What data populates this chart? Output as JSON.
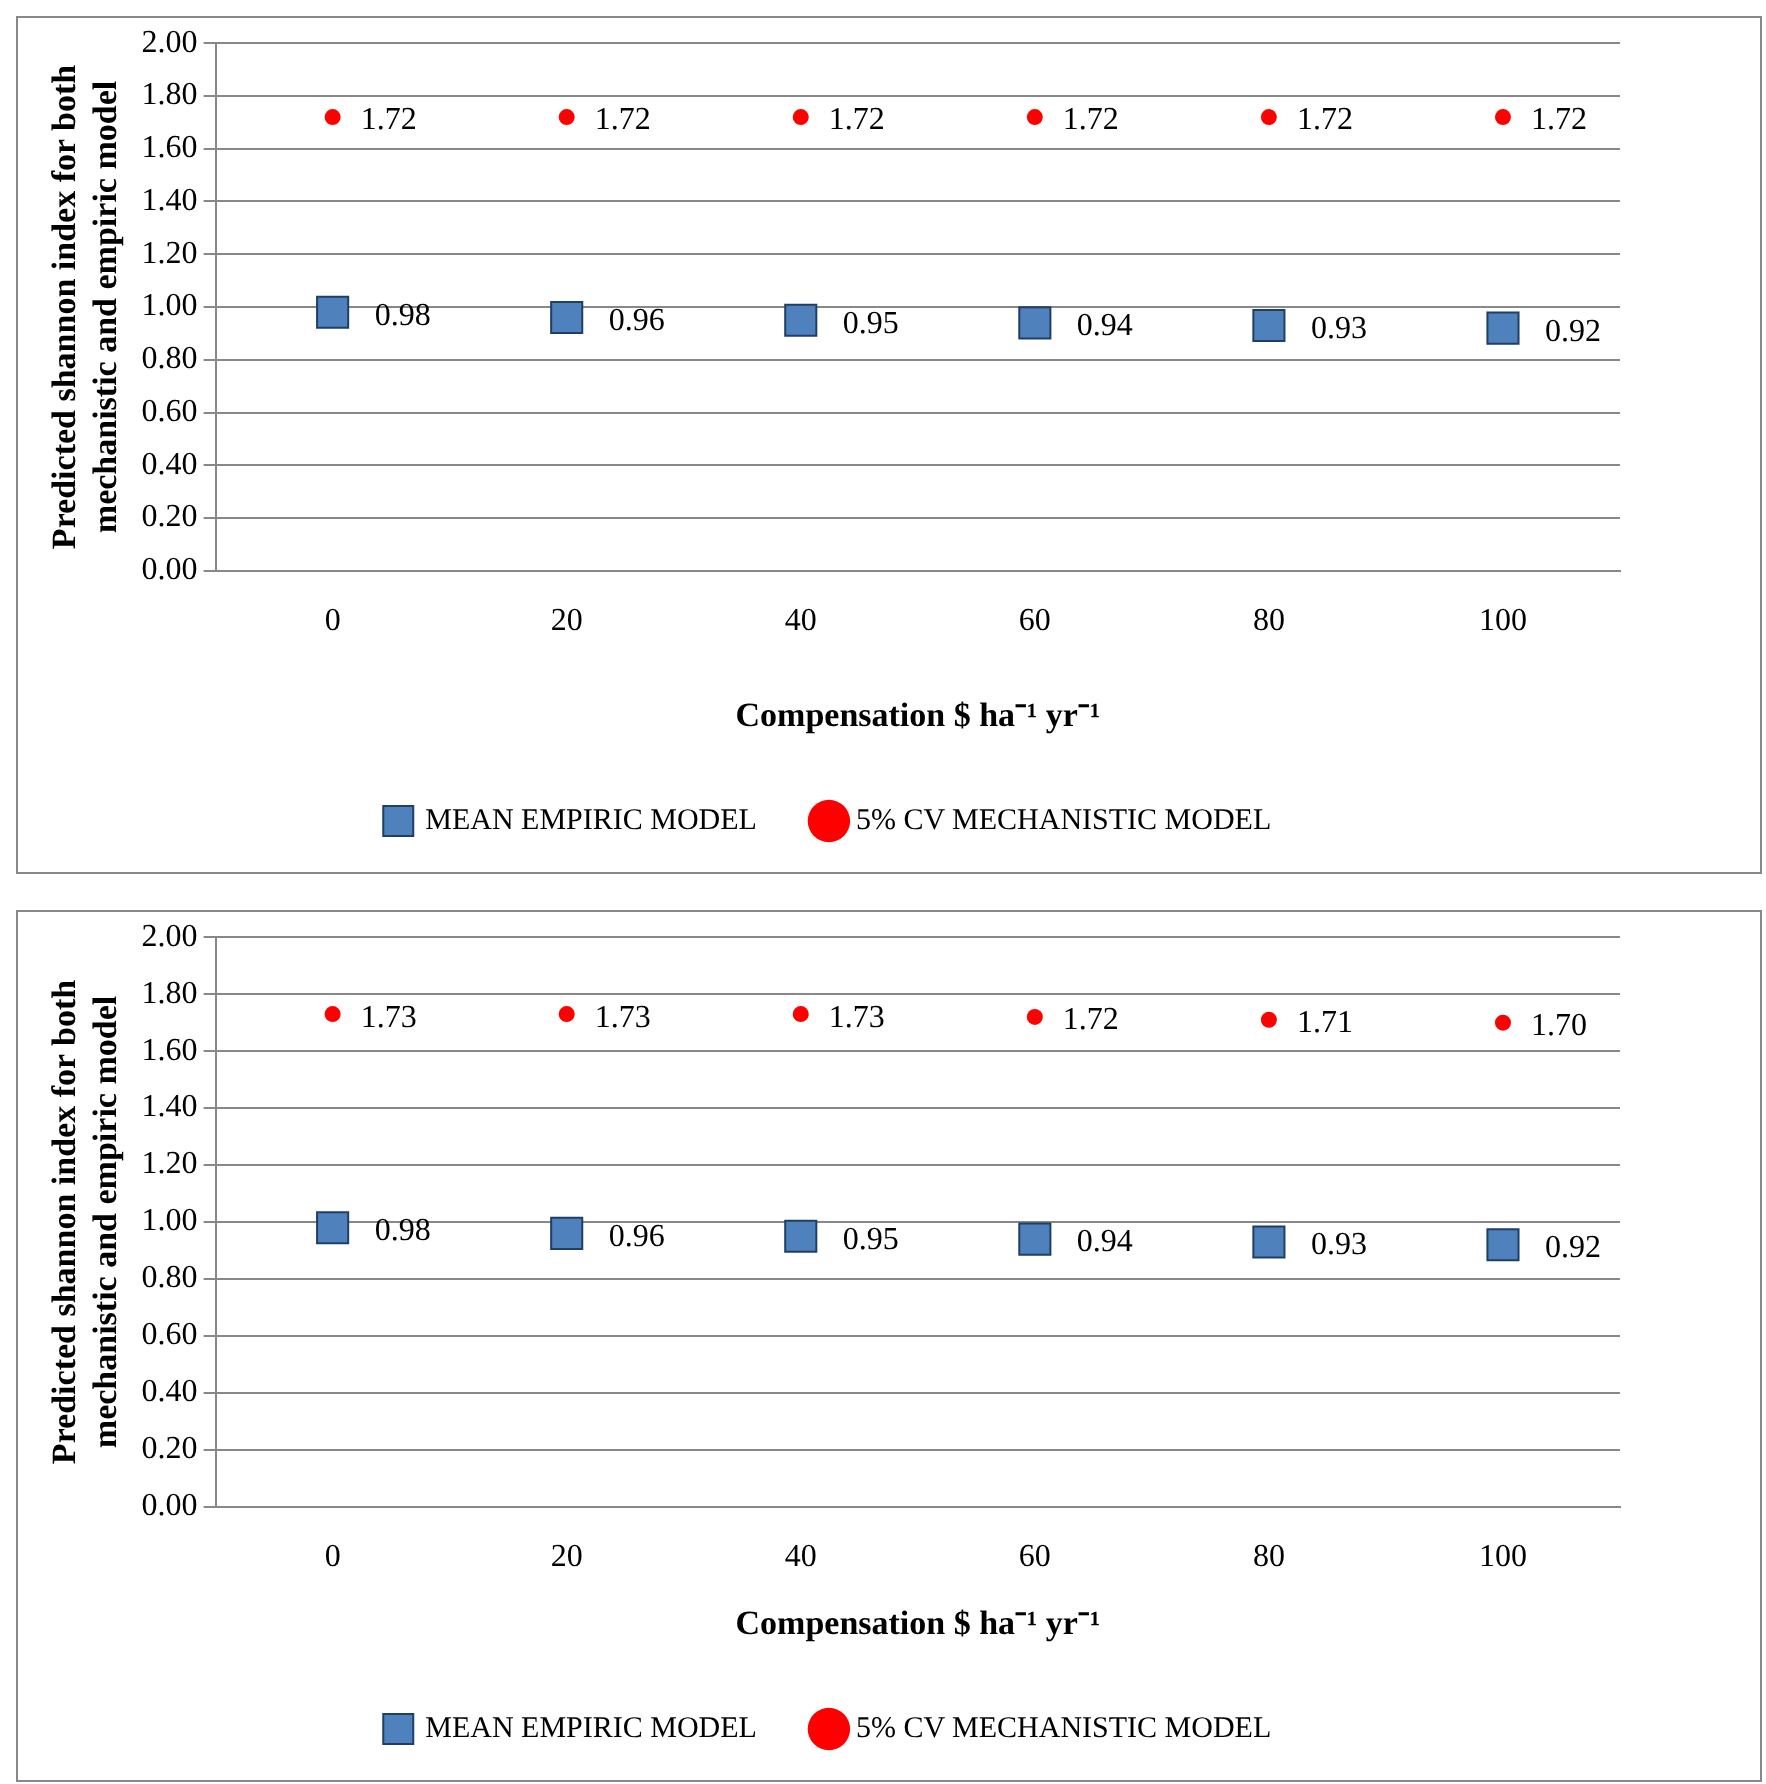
{
  "chart_data": [
    {
      "type": "scatter",
      "xlabel": "Compensation $ ha⁻¹ yr⁻¹",
      "ylabel": "Predicted shannon index for both mechanistic and empiric model",
      "categories": [
        "0",
        "20",
        "40",
        "60",
        "80",
        "100"
      ],
      "series": [
        {
          "name": "MEAN EMPIRIC MODEL",
          "color": "#4f81bd",
          "marker": "square",
          "values": [
            0.98,
            0.96,
            0.95,
            0.94,
            0.93,
            0.92
          ],
          "value_labels": [
            "0.98",
            "0.96",
            "0.95",
            "0.94",
            "0.93",
            "0.92"
          ]
        },
        {
          "name": "5% CV MECHANISTIC MODEL",
          "color": "#ff0000",
          "marker": "circle",
          "values": [
            1.72,
            1.72,
            1.72,
            1.72,
            1.72,
            1.72
          ],
          "value_labels": [
            "1.72",
            "1.72",
            "1.72",
            "1.72",
            "1.72",
            "1.72"
          ]
        }
      ],
      "ylim": [
        0,
        2
      ],
      "yticks": [
        {
          "value": 0,
          "label": "0.00"
        },
        {
          "value": 0.2,
          "label": "0.20"
        },
        {
          "value": 0.4,
          "label": "0.40"
        },
        {
          "value": 0.6,
          "label": "0.60"
        },
        {
          "value": 0.8,
          "label": "0.80"
        },
        {
          "value": 1,
          "label": "1.00"
        },
        {
          "value": 1.2,
          "label": "1.20"
        },
        {
          "value": 1.4,
          "label": "1.40"
        },
        {
          "value": 1.6,
          "label": "1.60"
        },
        {
          "value": 1.8,
          "label": "1.80"
        },
        {
          "value": 2,
          "label": "2.00"
        }
      ],
      "grid": "y",
      "legend": "bottom"
    },
    {
      "type": "scatter",
      "xlabel": "Compensation $ ha⁻¹ yr⁻¹",
      "ylabel": "Predicted shannon index for both mechanistic and empiric model",
      "categories": [
        "0",
        "20",
        "40",
        "60",
        "80",
        "100"
      ],
      "series": [
        {
          "name": "MEAN EMPIRIC MODEL",
          "color": "#4f81bd",
          "marker": "square",
          "values": [
            0.98,
            0.96,
            0.95,
            0.94,
            0.93,
            0.92
          ],
          "value_labels": [
            "0.98",
            "0.96",
            "0.95",
            "0.94",
            "0.93",
            "0.92"
          ]
        },
        {
          "name": "5% CV MECHANISTIC MODEL",
          "color": "#ff0000",
          "marker": "circle",
          "values": [
            1.73,
            1.73,
            1.73,
            1.72,
            1.71,
            1.7
          ],
          "value_labels": [
            "1.73",
            "1.73",
            "1.73",
            "1.72",
            "1.71",
            "1.70"
          ]
        }
      ],
      "ylim": [
        0,
        2
      ],
      "yticks": [
        {
          "value": 0,
          "label": "0.00"
        },
        {
          "value": 0.2,
          "label": "0.20"
        },
        {
          "value": 0.4,
          "label": "0.40"
        },
        {
          "value": 0.6,
          "label": "0.60"
        },
        {
          "value": 0.8,
          "label": "0.80"
        },
        {
          "value": 1,
          "label": "1.00"
        },
        {
          "value": 1.2,
          "label": "1.20"
        },
        {
          "value": 1.4,
          "label": "1.40"
        },
        {
          "value": 1.6,
          "label": "1.60"
        },
        {
          "value": 1.8,
          "label": "1.80"
        },
        {
          "value": 2,
          "label": "2.00"
        }
      ],
      "grid": "y",
      "legend": "bottom"
    }
  ]
}
